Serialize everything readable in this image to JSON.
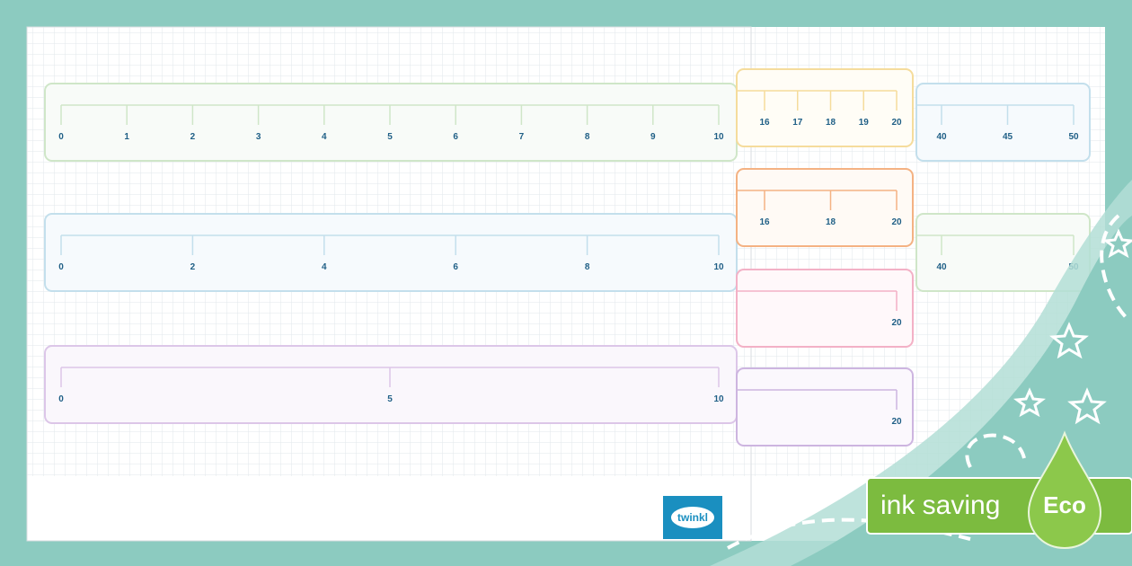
{
  "front_sheet": {
    "number_lines": [
      {
        "labels": [
          0,
          1,
          2,
          3,
          4,
          5,
          6,
          7,
          8,
          9,
          10
        ]
      },
      {
        "labels": [
          0,
          2,
          4,
          6,
          8,
          10
        ]
      },
      {
        "labels": [
          0,
          5,
          10
        ]
      }
    ]
  },
  "middle_sheet": {
    "number_lines": [
      {
        "labels": [
          16,
          17,
          18,
          19,
          20
        ]
      },
      {
        "labels": [
          16,
          18,
          20
        ]
      },
      {
        "labels": [
          20
        ]
      },
      {
        "labels": [
          20
        ]
      }
    ]
  },
  "back_sheet": {
    "number_lines": [
      {
        "labels": [
          40,
          45,
          50
        ]
      },
      {
        "labels": [
          40,
          50
        ]
      }
    ]
  },
  "logo": "twinkl",
  "badge": {
    "text": "ink saving",
    "eco": "Eco"
  }
}
